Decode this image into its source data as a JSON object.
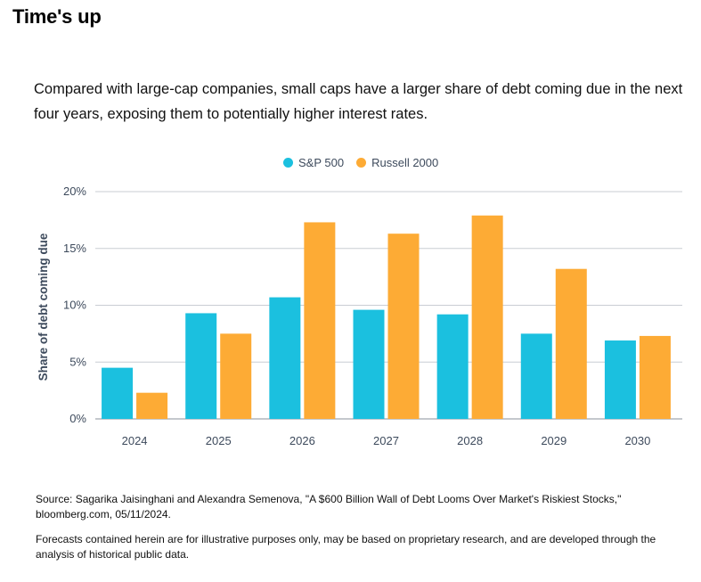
{
  "title": "Time's up",
  "subtitle": "Compared with large-cap companies, small caps have a larger share of debt coming due in the next four years, exposing them to potentially higher interest rates.",
  "colors": {
    "sp500": "#1bc0df",
    "russell": "#fdab35",
    "grid": "#c9cdd3",
    "text": "#3d4a5c"
  },
  "chart_data": {
    "type": "bar",
    "categories": [
      "2024",
      "2025",
      "2026",
      "2027",
      "2028",
      "2029",
      "2030"
    ],
    "series": [
      {
        "name": "S&P 500",
        "values": [
          4.5,
          9.3,
          10.7,
          9.6,
          9.2,
          7.5,
          6.9
        ]
      },
      {
        "name": "Russell 2000",
        "values": [
          2.3,
          7.5,
          17.3,
          16.3,
          17.9,
          13.2,
          7.3
        ]
      }
    ],
    "ylabel": "Share of debt coming due",
    "xlabel": "",
    "ylim": [
      0,
      20
    ],
    "yticks": [
      "0%",
      "5%",
      "10%",
      "15%",
      "20%"
    ],
    "grid": true,
    "legend": "top-center"
  },
  "source": "Source: Sagarika Jaisinghani and Alexandra Semenova, \"A $600 Billion Wall of Debt Looms Over Market's Riskiest Stocks,\" bloomberg.com, 05/11/2024.",
  "disclaimer": "Forecasts contained herein are for illustrative purposes only, may be based on proprietary research, and are developed through the analysis of historical public data."
}
